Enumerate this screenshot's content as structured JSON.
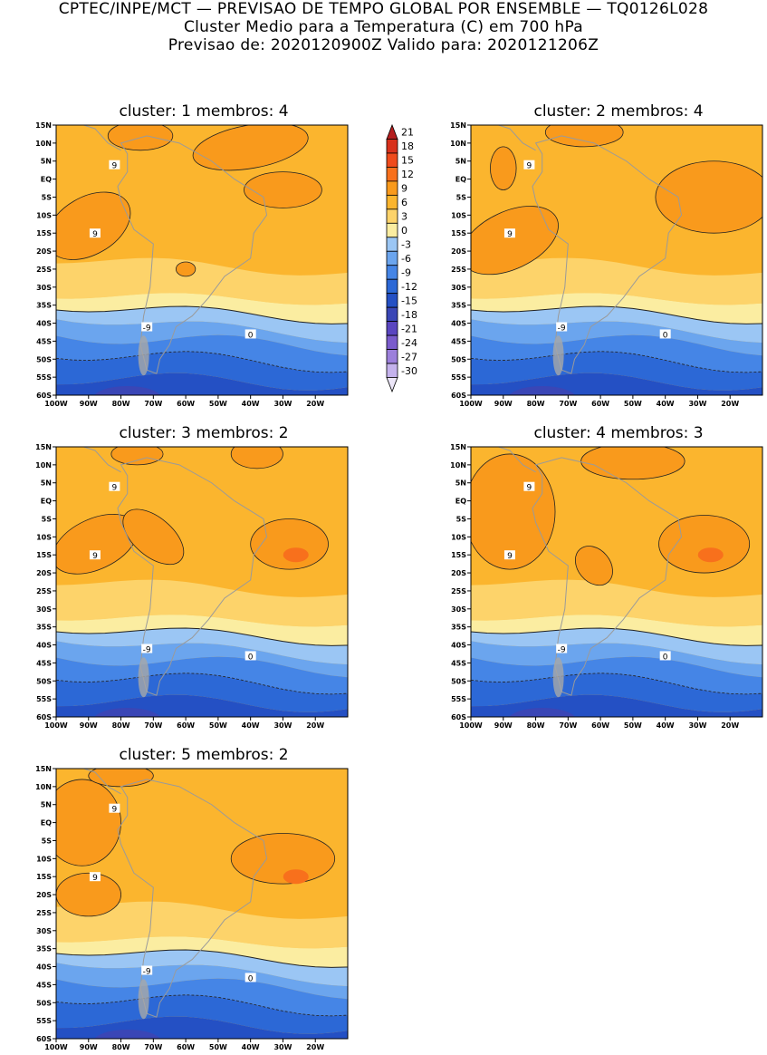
{
  "header": {
    "line1": "CPTEC/INPE/MCT — PREVISAO DE TEMPO GLOBAL POR ENSEMBLE — TQ0126L028",
    "line2": "Cluster Medio para a Temperatura (C) em 700 hPa",
    "line3": "Previsao de: 2020120900Z    Valido para: 2020121206Z"
  },
  "panels": [
    {
      "title": "cluster: 1   membros: 4",
      "variant": 1
    },
    {
      "title": "cluster: 2   membros: 4",
      "variant": 2
    },
    {
      "title": "cluster: 3   membros: 2",
      "variant": 3
    },
    {
      "title": "cluster: 4   membros: 3",
      "variant": 4
    },
    {
      "title": "cluster: 5   membros: 2",
      "variant": 5
    }
  ],
  "lat_labels": [
    "15N",
    "10N",
    "5N",
    "EQ",
    "5S",
    "10S",
    "15S",
    "20S",
    "25S",
    "30S",
    "35S",
    "40S",
    "45S",
    "50S",
    "55S",
    "60S"
  ],
  "lon_labels": [
    "100W",
    "90W",
    "80W",
    "70W",
    "60W",
    "50W",
    "40W",
    "30W",
    "20W"
  ],
  "contour_labels": {
    "warm": "9",
    "zero": "0",
    "cold": "-9"
  },
  "colorbar": {
    "labels": [
      "21",
      "18",
      "15",
      "12",
      "9",
      "6",
      "3",
      "0",
      "-3",
      "-6",
      "-9",
      "-12",
      "-15",
      "-18",
      "-21",
      "-24",
      "-27",
      "-30"
    ],
    "colors": [
      "#b51e1e",
      "#d8311c",
      "#ef4b1c",
      "#f8701c",
      "#f99a1c",
      "#fbb52e",
      "#fdd36a",
      "#fbeda1",
      "#9bc6f4",
      "#6ba5ee",
      "#4585e6",
      "#2c68d6",
      "#2450c4",
      "#3a46b6",
      "#5a46c0",
      "#7a5ccc",
      "#9c80db",
      "#c4b2ec",
      "#ece6f8"
    ]
  }
}
